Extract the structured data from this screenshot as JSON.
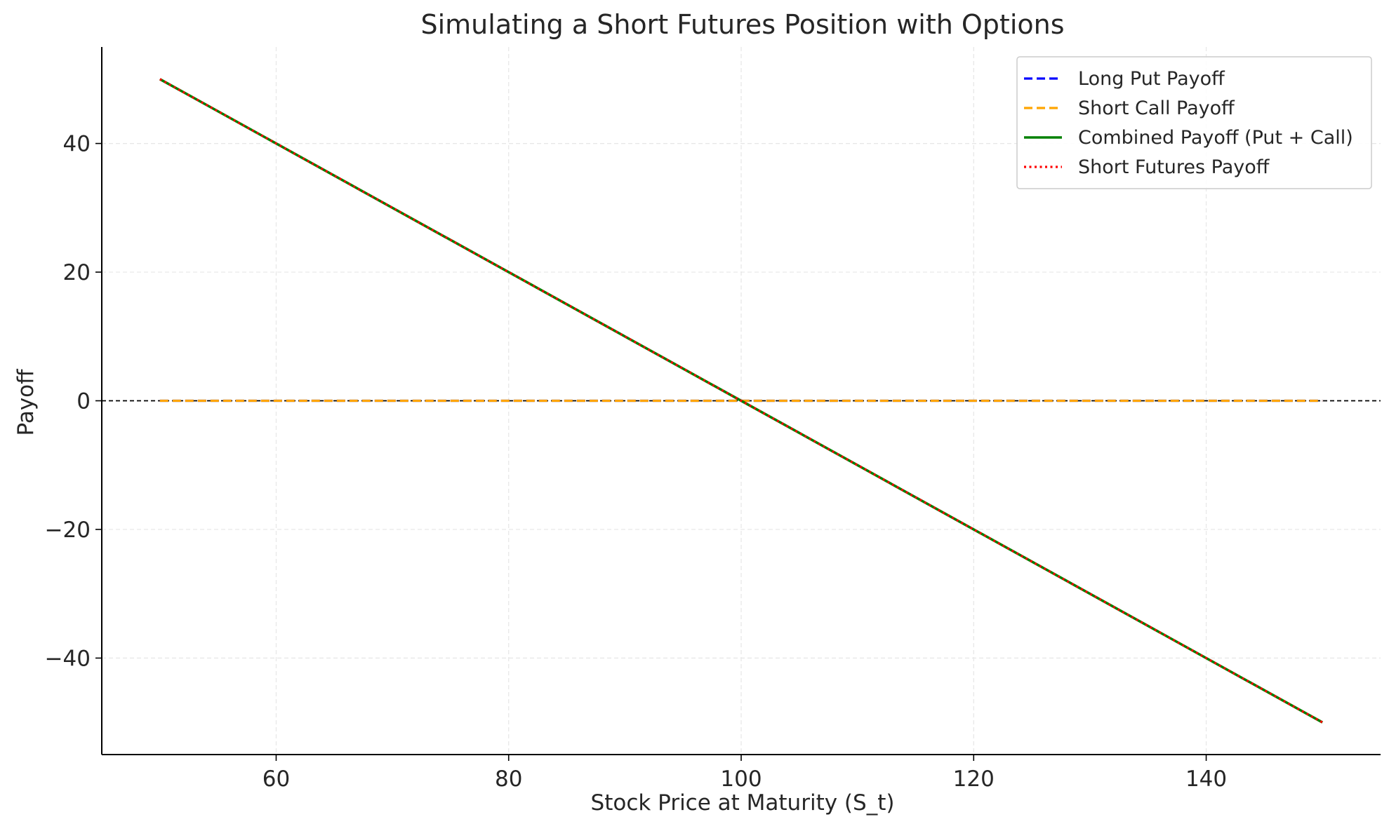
{
  "chart_data": {
    "type": "line",
    "title": "Simulating a Short Futures Position with Options",
    "xlabel": "Stock Price at Maturity (S_t)",
    "ylabel": "Payoff",
    "xlim": [
      45,
      155
    ],
    "ylim": [
      -55,
      55
    ],
    "xticks": [
      60,
      80,
      100,
      120,
      140
    ],
    "yticks": [
      -40,
      -20,
      0,
      20,
      40
    ],
    "xtick_labels": [
      "60",
      "80",
      "100",
      "120",
      "140"
    ],
    "ytick_labels": [
      "−40",
      "−20",
      "0",
      "20",
      "40"
    ],
    "grid": true,
    "reference_line": {
      "y": 0,
      "color": "#000000",
      "style": "dashed"
    },
    "legend_position": "top-right",
    "series": [
      {
        "name": "Long Put Payoff",
        "color": "#0000ff",
        "style": "dashed",
        "x": [
          50,
          100,
          150
        ],
        "y": [
          0,
          0,
          0
        ]
      },
      {
        "name": "Short Call Payoff",
        "color": "#ffa500",
        "style": "dashed",
        "x": [
          50,
          100,
          150
        ],
        "y": [
          0,
          0,
          0
        ]
      },
      {
        "name": "Combined Payoff (Put + Call)",
        "color": "#008000",
        "style": "solid",
        "x": [
          50,
          100,
          150
        ],
        "y": [
          50,
          0,
          -50
        ]
      },
      {
        "name": "Short Futures Payoff",
        "color": "#ff0000",
        "style": "dotted",
        "x": [
          50,
          100,
          150
        ],
        "y": [
          50,
          0,
          -50
        ]
      }
    ]
  }
}
